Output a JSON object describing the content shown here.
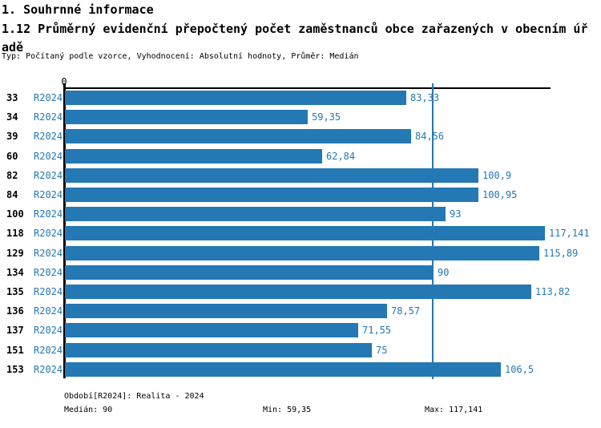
{
  "header": {
    "section_title": "1. Souhrnné informace",
    "chart_title": "1.12 Průměrný evidenční přepočtený počet zaměstnanců obce zařazených v obecním úřadě",
    "meta_line": "Typ: Počítaný podle vzorce, Vyhodnocení: Absolutní hodnoty, Průměr: Medián"
  },
  "chart_data": {
    "type": "bar",
    "orientation": "horizontal",
    "title": "1.12 Průměrný evidenční přepočtený počet zaměstnanců obce zařazených v obecním úřadě",
    "series_label": "R2024",
    "categories": [
      "33",
      "34",
      "39",
      "60",
      "82",
      "84",
      "100",
      "118",
      "129",
      "134",
      "135",
      "136",
      "137",
      "151",
      "153"
    ],
    "values": [
      83.33,
      59.35,
      84.56,
      62.84,
      100.9,
      100.95,
      93,
      117.141,
      115.89,
      90,
      113.82,
      78.57,
      71.55,
      75,
      106.5
    ],
    "value_labels": [
      "83,33",
      "59,35",
      "84,56",
      "62,84",
      "100,9",
      "100,95",
      "93",
      "117,141",
      "115,89",
      "90",
      "113,82",
      "78,57",
      "71,55",
      "75",
      "106,5"
    ],
    "axis_origin_label": "0",
    "xlim": [
      0,
      118.8
    ],
    "median_reference_line": 90,
    "grid": false,
    "legend_position": "none",
    "bar_color": "#2478b4",
    "median_line_color": "#2478b4",
    "label_color": "#2478b4"
  },
  "footer": {
    "period_label": "Období[R2024]: Realita - 2024",
    "median_label": "Medián: 90",
    "min_label": "Min: 59,35",
    "max_label": "Max: 117,141"
  }
}
